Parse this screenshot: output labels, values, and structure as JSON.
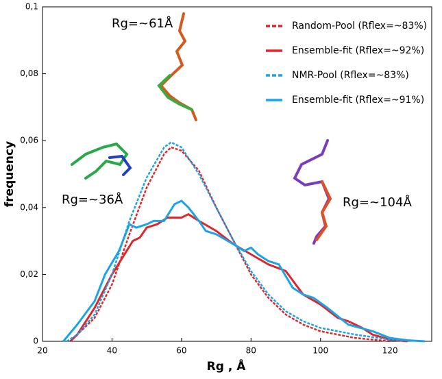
{
  "chart_data": {
    "type": "line",
    "xlabel": "Rg , Å",
    "ylabel": "frequency",
    "xlim": [
      20,
      132
    ],
    "ylim": [
      0,
      0.1
    ],
    "xticks": [
      20,
      40,
      60,
      80,
      100,
      120
    ],
    "yticks": [
      {
        "value": 0,
        "label": "0"
      },
      {
        "value": 0.02,
        "label": "0,02"
      },
      {
        "value": 0.04,
        "label": "0,04"
      },
      {
        "value": 0.06,
        "label": "0,06"
      },
      {
        "value": 0.08,
        "label": "0,08"
      },
      {
        "value": 0.1,
        "label": "0,1"
      }
    ],
    "legend": "upper right",
    "annotations": [
      "Rg=~61Å",
      "Rg=~36Å",
      "Rg=~104Å"
    ],
    "series": [
      {
        "name": "Random-Pool (Rflex=~83%)",
        "color": "#e0262a",
        "dashed": true,
        "x": [
          28,
          30,
          35,
          40,
          45,
          50,
          55,
          57,
          60,
          65,
          70,
          75,
          80,
          85,
          90,
          95,
          100,
          110,
          120
        ],
        "values": [
          0,
          0.002,
          0.007,
          0.017,
          0.032,
          0.046,
          0.056,
          0.058,
          0.057,
          0.051,
          0.04,
          0.03,
          0.02,
          0.013,
          0.008,
          0.005,
          0.003,
          0.001,
          0
        ]
      },
      {
        "name": "Ensemble-fit (Rflex=~92%)",
        "color": "#e0262a",
        "dashed": false,
        "x": [
          28,
          30,
          35,
          40,
          43,
          46,
          48,
          50,
          53,
          56,
          58,
          60,
          62,
          65,
          70,
          75,
          80,
          85,
          90,
          95,
          100,
          105,
          108,
          112,
          115,
          120,
          125
        ],
        "values": [
          0,
          0.002,
          0.01,
          0.02,
          0.025,
          0.03,
          0.031,
          0.034,
          0.035,
          0.037,
          0.037,
          0.037,
          0.038,
          0.036,
          0.033,
          0.029,
          0.026,
          0.023,
          0.021,
          0.014,
          0.011,
          0.007,
          0.006,
          0.004,
          0.002,
          0.0005,
          0
        ]
      },
      {
        "name": "NMR-Pool (Rflex=~83%)",
        "color": "#1ba3e8",
        "dashed": true,
        "x": [
          27,
          30,
          35,
          40,
          45,
          50,
          55,
          57,
          60,
          65,
          70,
          75,
          80,
          85,
          90,
          95,
          100,
          110,
          120,
          130
        ],
        "values": [
          0,
          0.002,
          0.008,
          0.02,
          0.036,
          0.049,
          0.058,
          0.0595,
          0.058,
          0.05,
          0.04,
          0.03,
          0.021,
          0.014,
          0.009,
          0.006,
          0.004,
          0.002,
          0.0005,
          0
        ]
      },
      {
        "name": "Ensemble-fit (Rflex=~91%)",
        "color": "#1ba3e8",
        "dashed": false,
        "x": [
          26,
          30,
          35,
          38,
          42,
          45,
          47,
          50,
          52,
          55,
          58,
          60,
          62,
          65,
          67,
          70,
          75,
          78,
          80,
          82,
          85,
          88,
          92,
          95,
          98,
          102,
          108,
          115,
          120,
          125,
          130
        ],
        "values": [
          0,
          0.005,
          0.012,
          0.02,
          0.027,
          0.035,
          0.034,
          0.035,
          0.036,
          0.036,
          0.041,
          0.042,
          0.04,
          0.036,
          0.033,
          0.032,
          0.029,
          0.027,
          0.028,
          0.026,
          0.024,
          0.023,
          0.016,
          0.014,
          0.013,
          0.01,
          0.005,
          0.003,
          0.001,
          0.0003,
          0
        ]
      }
    ]
  }
}
